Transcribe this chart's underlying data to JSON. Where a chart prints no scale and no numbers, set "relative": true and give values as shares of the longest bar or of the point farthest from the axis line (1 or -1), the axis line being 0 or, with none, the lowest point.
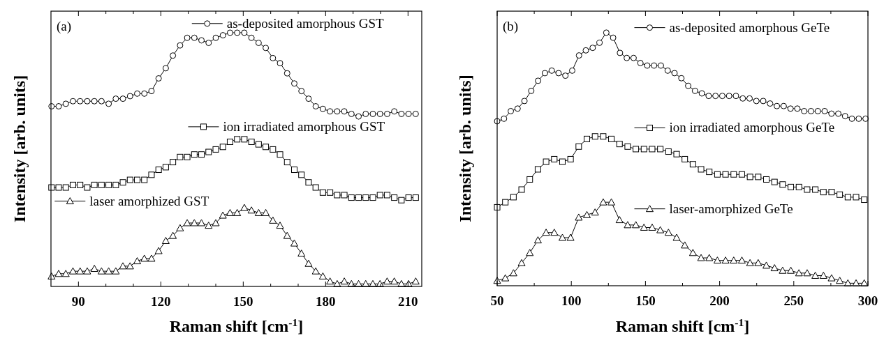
{
  "chart_data": [
    {
      "type": "line",
      "relative": true,
      "annotations": [
        "(a)"
      ],
      "xlabel": "Raman shift [cm$^{-1}$]",
      "ylabel": "Intensity [arb. units]",
      "xlim": [
        80,
        215
      ],
      "legend": "top",
      "xticks": [
        90,
        {
          "value": 100,
          "label": null
        },
        {
          "value": 110,
          "label": null
        },
        120,
        {
          "value": 130,
          "label": null
        },
        {
          "value": 140,
          "label": null
        },
        150,
        {
          "value": 160,
          "label": null
        },
        {
          "value": 170,
          "label": null
        },
        180,
        {
          "value": 190,
          "label": null
        },
        {
          "value": 200,
          "label": null
        },
        210
      ],
      "x": [
        80.2,
        82.8,
        85.4,
        88.0,
        90.6,
        93.2,
        95.8,
        98.4,
        101.0,
        103.6,
        106.2,
        108.8,
        111.4,
        114.0,
        116.6,
        119.2,
        121.8,
        124.4,
        127.0,
        129.6,
        132.2,
        134.8,
        137.4,
        140.0,
        142.6,
        145.2,
        147.8,
        150.4,
        153.0,
        155.6,
        158.2,
        160.8,
        163.4,
        166.0,
        168.6,
        171.2,
        173.8,
        176.4,
        179.0,
        181.6,
        184.2,
        186.8,
        189.4,
        192.0,
        194.6,
        197.2,
        199.8,
        202.4,
        205.0,
        207.6,
        210.2,
        212.8
      ],
      "series": [
        {
          "name": "as-deposited amorphous GST",
          "color": "#000000",
          "marker": "circle",
          "values": [
            0.71,
            0.71,
            0.72,
            0.73,
            0.73,
            0.73,
            0.73,
            0.73,
            0.72,
            0.74,
            0.74,
            0.75,
            0.76,
            0.76,
            0.77,
            0.82,
            0.86,
            0.91,
            0.95,
            0.98,
            0.98,
            0.97,
            0.96,
            0.98,
            0.99,
            1.0,
            1.0,
            1.0,
            0.98,
            0.96,
            0.94,
            0.9,
            0.88,
            0.84,
            0.8,
            0.77,
            0.74,
            0.71,
            0.7,
            0.69,
            0.69,
            0.69,
            0.68,
            0.67,
            0.68,
            0.68,
            0.68,
            0.68,
            0.69,
            0.68,
            0.68,
            0.68
          ]
        },
        {
          "name": "ion irradiated amorphous GST",
          "color": "#000000",
          "marker": "square",
          "values": [
            0.39,
            0.39,
            0.39,
            0.4,
            0.4,
            0.39,
            0.4,
            0.4,
            0.4,
            0.4,
            0.41,
            0.42,
            0.42,
            0.42,
            0.44,
            0.46,
            0.47,
            0.49,
            0.51,
            0.51,
            0.52,
            0.52,
            0.53,
            0.54,
            0.55,
            0.57,
            0.58,
            0.58,
            0.57,
            0.56,
            0.55,
            0.54,
            0.52,
            0.49,
            0.46,
            0.44,
            0.41,
            0.39,
            0.37,
            0.37,
            0.36,
            0.36,
            0.35,
            0.35,
            0.35,
            0.35,
            0.36,
            0.36,
            0.35,
            0.34,
            0.35,
            0.35
          ]
        },
        {
          "name": "laser amorphized GST",
          "color": "#000000",
          "marker": "triangle",
          "values": [
            0.04,
            0.05,
            0.05,
            0.06,
            0.06,
            0.06,
            0.07,
            0.06,
            0.06,
            0.06,
            0.08,
            0.08,
            0.1,
            0.11,
            0.11,
            0.14,
            0.18,
            0.2,
            0.23,
            0.25,
            0.25,
            0.25,
            0.24,
            0.25,
            0.28,
            0.29,
            0.29,
            0.31,
            0.3,
            0.29,
            0.29,
            0.26,
            0.24,
            0.2,
            0.17,
            0.13,
            0.09,
            0.06,
            0.04,
            0.02,
            0.01,
            0.02,
            0.01,
            0.01,
            0.01,
            0.01,
            0.01,
            0.02,
            0.02,
            0.01,
            0.01,
            0.02
          ]
        }
      ]
    },
    {
      "type": "line",
      "relative": true,
      "annotations": [
        "(b)"
      ],
      "xlabel": "Raman shift [cm$^{-1}$]",
      "ylabel": "Intensity [arb. units]",
      "xlim": [
        50,
        300
      ],
      "legend": "top right",
      "xticks": [
        50,
        {
          "value": 75,
          "label": null
        },
        100,
        {
          "value": 125,
          "label": null
        },
        150,
        {
          "value": 175,
          "label": null
        },
        200,
        {
          "value": 225,
          "label": null
        },
        250,
        {
          "value": 275,
          "label": null
        },
        300
      ],
      "series": [
        {
          "name": "as-deposited amorphous GeTe",
          "color": "#000000",
          "marker": "circle",
          "x": [
            50,
            54.6,
            59.2,
            63.8,
            68.4,
            73,
            77.6,
            82.2,
            86.8,
            91.4,
            96,
            100.6,
            105.2,
            109.8,
            114.4,
            119,
            123.6,
            128.2,
            132.8,
            137.4,
            142,
            146.6,
            151.2,
            155.8,
            160.4,
            165,
            169.6,
            174.2,
            178.8,
            183.4,
            188,
            192.6,
            197.2,
            201.8,
            206.4,
            211,
            215.6,
            220.2,
            224.8,
            229.4,
            234,
            238.6,
            243.2,
            247.8,
            252.4,
            257,
            261.6,
            266.2,
            270.8,
            275.4,
            280,
            284.6,
            289.2,
            293.8,
            298.4
          ],
          "values": [
            0.65,
            0.66,
            0.69,
            0.7,
            0.73,
            0.77,
            0.81,
            0.84,
            0.85,
            0.84,
            0.83,
            0.85,
            0.91,
            0.93,
            0.94,
            0.96,
            1.0,
            0.98,
            0.92,
            0.9,
            0.9,
            0.88,
            0.87,
            0.87,
            0.87,
            0.85,
            0.84,
            0.82,
            0.79,
            0.77,
            0.76,
            0.75,
            0.75,
            0.75,
            0.75,
            0.75,
            0.74,
            0.74,
            0.73,
            0.73,
            0.72,
            0.71,
            0.71,
            0.7,
            0.7,
            0.69,
            0.69,
            0.69,
            0.69,
            0.68,
            0.68,
            0.67,
            0.66,
            0.66,
            0.66
          ]
        },
        {
          "name": "ion irradiated amorphous GeTe",
          "color": "#000000",
          "marker": "square",
          "x": [
            50,
            55.5,
            61,
            66.5,
            72,
            77.5,
            83,
            88.5,
            94,
            99.5,
            105,
            110.5,
            116,
            121.5,
            127,
            132.5,
            138,
            143.5,
            149,
            154.5,
            160,
            165.5,
            171,
            176.5,
            182,
            187.5,
            193,
            198.5,
            204,
            209.5,
            215,
            220.5,
            226,
            231.5,
            237,
            242.5,
            248,
            253.5,
            259,
            264.5,
            270,
            275.5,
            281,
            286.5,
            292,
            297.5
          ],
          "values": [
            0.31,
            0.33,
            0.35,
            0.38,
            0.42,
            0.46,
            0.49,
            0.5,
            0.49,
            0.5,
            0.55,
            0.58,
            0.59,
            0.59,
            0.58,
            0.56,
            0.55,
            0.54,
            0.54,
            0.54,
            0.54,
            0.53,
            0.52,
            0.5,
            0.48,
            0.46,
            0.45,
            0.44,
            0.44,
            0.44,
            0.44,
            0.43,
            0.43,
            0.42,
            0.41,
            0.4,
            0.39,
            0.39,
            0.38,
            0.38,
            0.37,
            0.37,
            0.36,
            0.35,
            0.35,
            0.34
          ]
        },
        {
          "name": "laser-amorphized GeTe",
          "color": "#000000",
          "marker": "triangle",
          "x": [
            50,
            55.5,
            61,
            66.5,
            72,
            77.5,
            83,
            88.5,
            94,
            99.5,
            105,
            110.5,
            116,
            121.5,
            127,
            132.5,
            138,
            143.5,
            149,
            154.5,
            160,
            165.5,
            171,
            176.5,
            182,
            187.5,
            193,
            198.5,
            204,
            209.5,
            215,
            220.5,
            226,
            231.5,
            237,
            242.5,
            248,
            253.5,
            259,
            264.5,
            270,
            275.5,
            281,
            286.5,
            292,
            297.5
          ],
          "values": [
            0.02,
            0.03,
            0.05,
            0.09,
            0.13,
            0.18,
            0.21,
            0.21,
            0.19,
            0.19,
            0.27,
            0.28,
            0.29,
            0.33,
            0.33,
            0.26,
            0.24,
            0.24,
            0.23,
            0.23,
            0.22,
            0.21,
            0.19,
            0.16,
            0.13,
            0.11,
            0.11,
            0.1,
            0.1,
            0.1,
            0.1,
            0.09,
            0.09,
            0.08,
            0.07,
            0.06,
            0.06,
            0.05,
            0.05,
            0.04,
            0.04,
            0.03,
            0.02,
            0.01,
            0.01,
            0.01
          ]
        }
      ]
    }
  ]
}
